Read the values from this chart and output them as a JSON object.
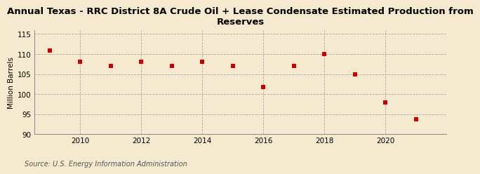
{
  "title_line1": "Annual Texas - RRC District 8A Crude Oil + Lease Condensate Estimated Production from",
  "title_line2": "Reserves",
  "ylabel": "Million Barrels",
  "source": "Source: U.S. Energy Information Administration",
  "years": [
    2009,
    2010,
    2011,
    2012,
    2013,
    2014,
    2015,
    2016,
    2017,
    2018,
    2019,
    2020,
    2021
  ],
  "values": [
    110.8,
    108.0,
    107.0,
    108.0,
    107.0,
    108.0,
    107.0,
    101.8,
    107.0,
    110.0,
    105.0,
    98.0,
    93.8
  ],
  "ylim": [
    90,
    116
  ],
  "yticks": [
    90,
    95,
    100,
    105,
    110,
    115
  ],
  "xticks": [
    2010,
    2012,
    2014,
    2016,
    2018,
    2020
  ],
  "xlim": [
    2008.5,
    2022.0
  ],
  "marker_color": "#cc0000",
  "marker": "s",
  "marker_size": 16,
  "background_color": "#f5ead0",
  "grid_color": "#aaaaaa",
  "spine_color": "#888888",
  "title_fontsize": 9.5,
  "axis_label_fontsize": 7.5,
  "tick_fontsize": 7.5,
  "source_fontsize": 7
}
